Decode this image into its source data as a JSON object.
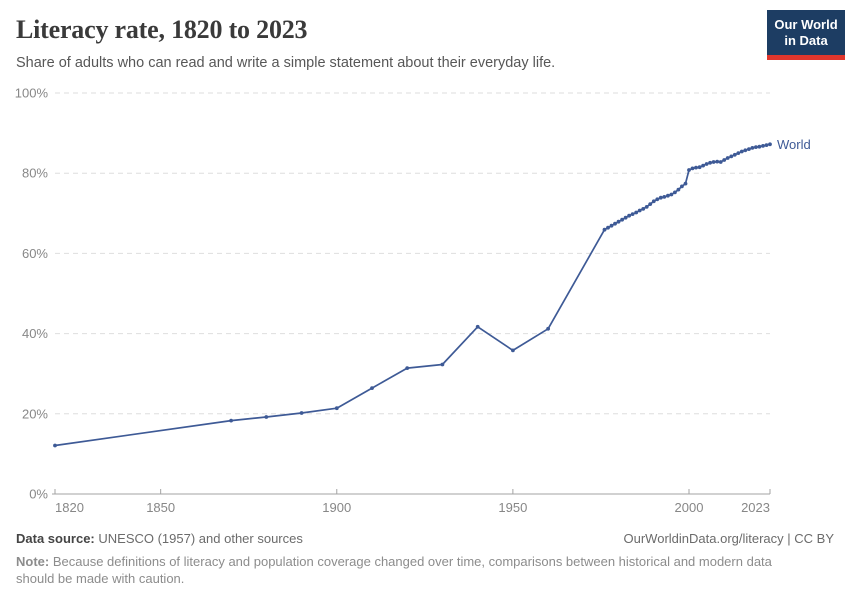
{
  "header": {
    "title": "Literacy rate, 1820 to 2023",
    "subtitle": "Share of adults who can read and write a simple statement about their everyday life.",
    "logo": {
      "line1": "Our World",
      "line2": "in Data",
      "bg_color": "#1d3d63",
      "accent_color": "#e0362d"
    }
  },
  "chart_data": {
    "type": "line",
    "title": "Literacy rate, 1820 to 2023",
    "xlabel": "",
    "ylabel": "",
    "xlim": [
      1820,
      2023
    ],
    "ylim": [
      0,
      100
    ],
    "x_ticks": [
      1820,
      1850,
      1900,
      1950,
      2000,
      2023
    ],
    "y_ticks": [
      0,
      20,
      40,
      60,
      80,
      100
    ],
    "y_tick_suffix": "%",
    "grid": "horizontal-dashed",
    "legend_position": "end-of-line-label",
    "colors": {
      "line": "#3e5a96",
      "grid": "#dedede",
      "axis": "#a3a3a3",
      "tick_label": "#878787"
    },
    "series": [
      {
        "name": "World",
        "end_label": "World",
        "points": [
          [
            1820,
            12.1
          ],
          [
            1870,
            18.3
          ],
          [
            1880,
            19.2
          ],
          [
            1890,
            20.2
          ],
          [
            1900,
            21.4
          ],
          [
            1910,
            26.4
          ],
          [
            1920,
            31.4
          ],
          [
            1930,
            32.3
          ],
          [
            1940,
            41.7
          ],
          [
            1950,
            35.8
          ],
          [
            1960,
            41.2
          ],
          [
            1976,
            65.9
          ],
          [
            1977,
            66.4
          ],
          [
            1978,
            66.9
          ],
          [
            1979,
            67.4
          ],
          [
            1980,
            67.9
          ],
          [
            1981,
            68.4
          ],
          [
            1982,
            68.9
          ],
          [
            1983,
            69.4
          ],
          [
            1984,
            69.8
          ],
          [
            1985,
            70.2
          ],
          [
            1986,
            70.7
          ],
          [
            1987,
            71.1
          ],
          [
            1988,
            71.6
          ],
          [
            1989,
            72.3
          ],
          [
            1990,
            73.0
          ],
          [
            1991,
            73.5
          ],
          [
            1992,
            73.9
          ],
          [
            1993,
            74.1
          ],
          [
            1994,
            74.4
          ],
          [
            1995,
            74.7
          ],
          [
            1996,
            75.2
          ],
          [
            1997,
            75.9
          ],
          [
            1998,
            76.7
          ],
          [
            1999,
            77.4
          ],
          [
            2000,
            80.8
          ],
          [
            2001,
            81.2
          ],
          [
            2002,
            81.4
          ],
          [
            2003,
            81.5
          ],
          [
            2004,
            81.9
          ],
          [
            2005,
            82.3
          ],
          [
            2006,
            82.6
          ],
          [
            2007,
            82.8
          ],
          [
            2008,
            82.9
          ],
          [
            2009,
            82.8
          ],
          [
            2010,
            83.3
          ],
          [
            2011,
            83.8
          ],
          [
            2012,
            84.2
          ],
          [
            2013,
            84.6
          ],
          [
            2014,
            85.0
          ],
          [
            2015,
            85.4
          ],
          [
            2016,
            85.7
          ],
          [
            2017,
            86.0
          ],
          [
            2018,
            86.3
          ],
          [
            2019,
            86.5
          ],
          [
            2020,
            86.6
          ],
          [
            2021,
            86.8
          ],
          [
            2022,
            87.0
          ],
          [
            2023,
            87.2
          ]
        ]
      }
    ]
  },
  "footer": {
    "source_label": "Data source:",
    "source_value": "UNESCO (1957) and other sources",
    "link": "OurWorldinData.org/literacy | CC BY",
    "note_label": "Note:",
    "note_value": "Because definitions of literacy and population coverage changed over time, comparisons between historical and modern data should be made with caution."
  }
}
